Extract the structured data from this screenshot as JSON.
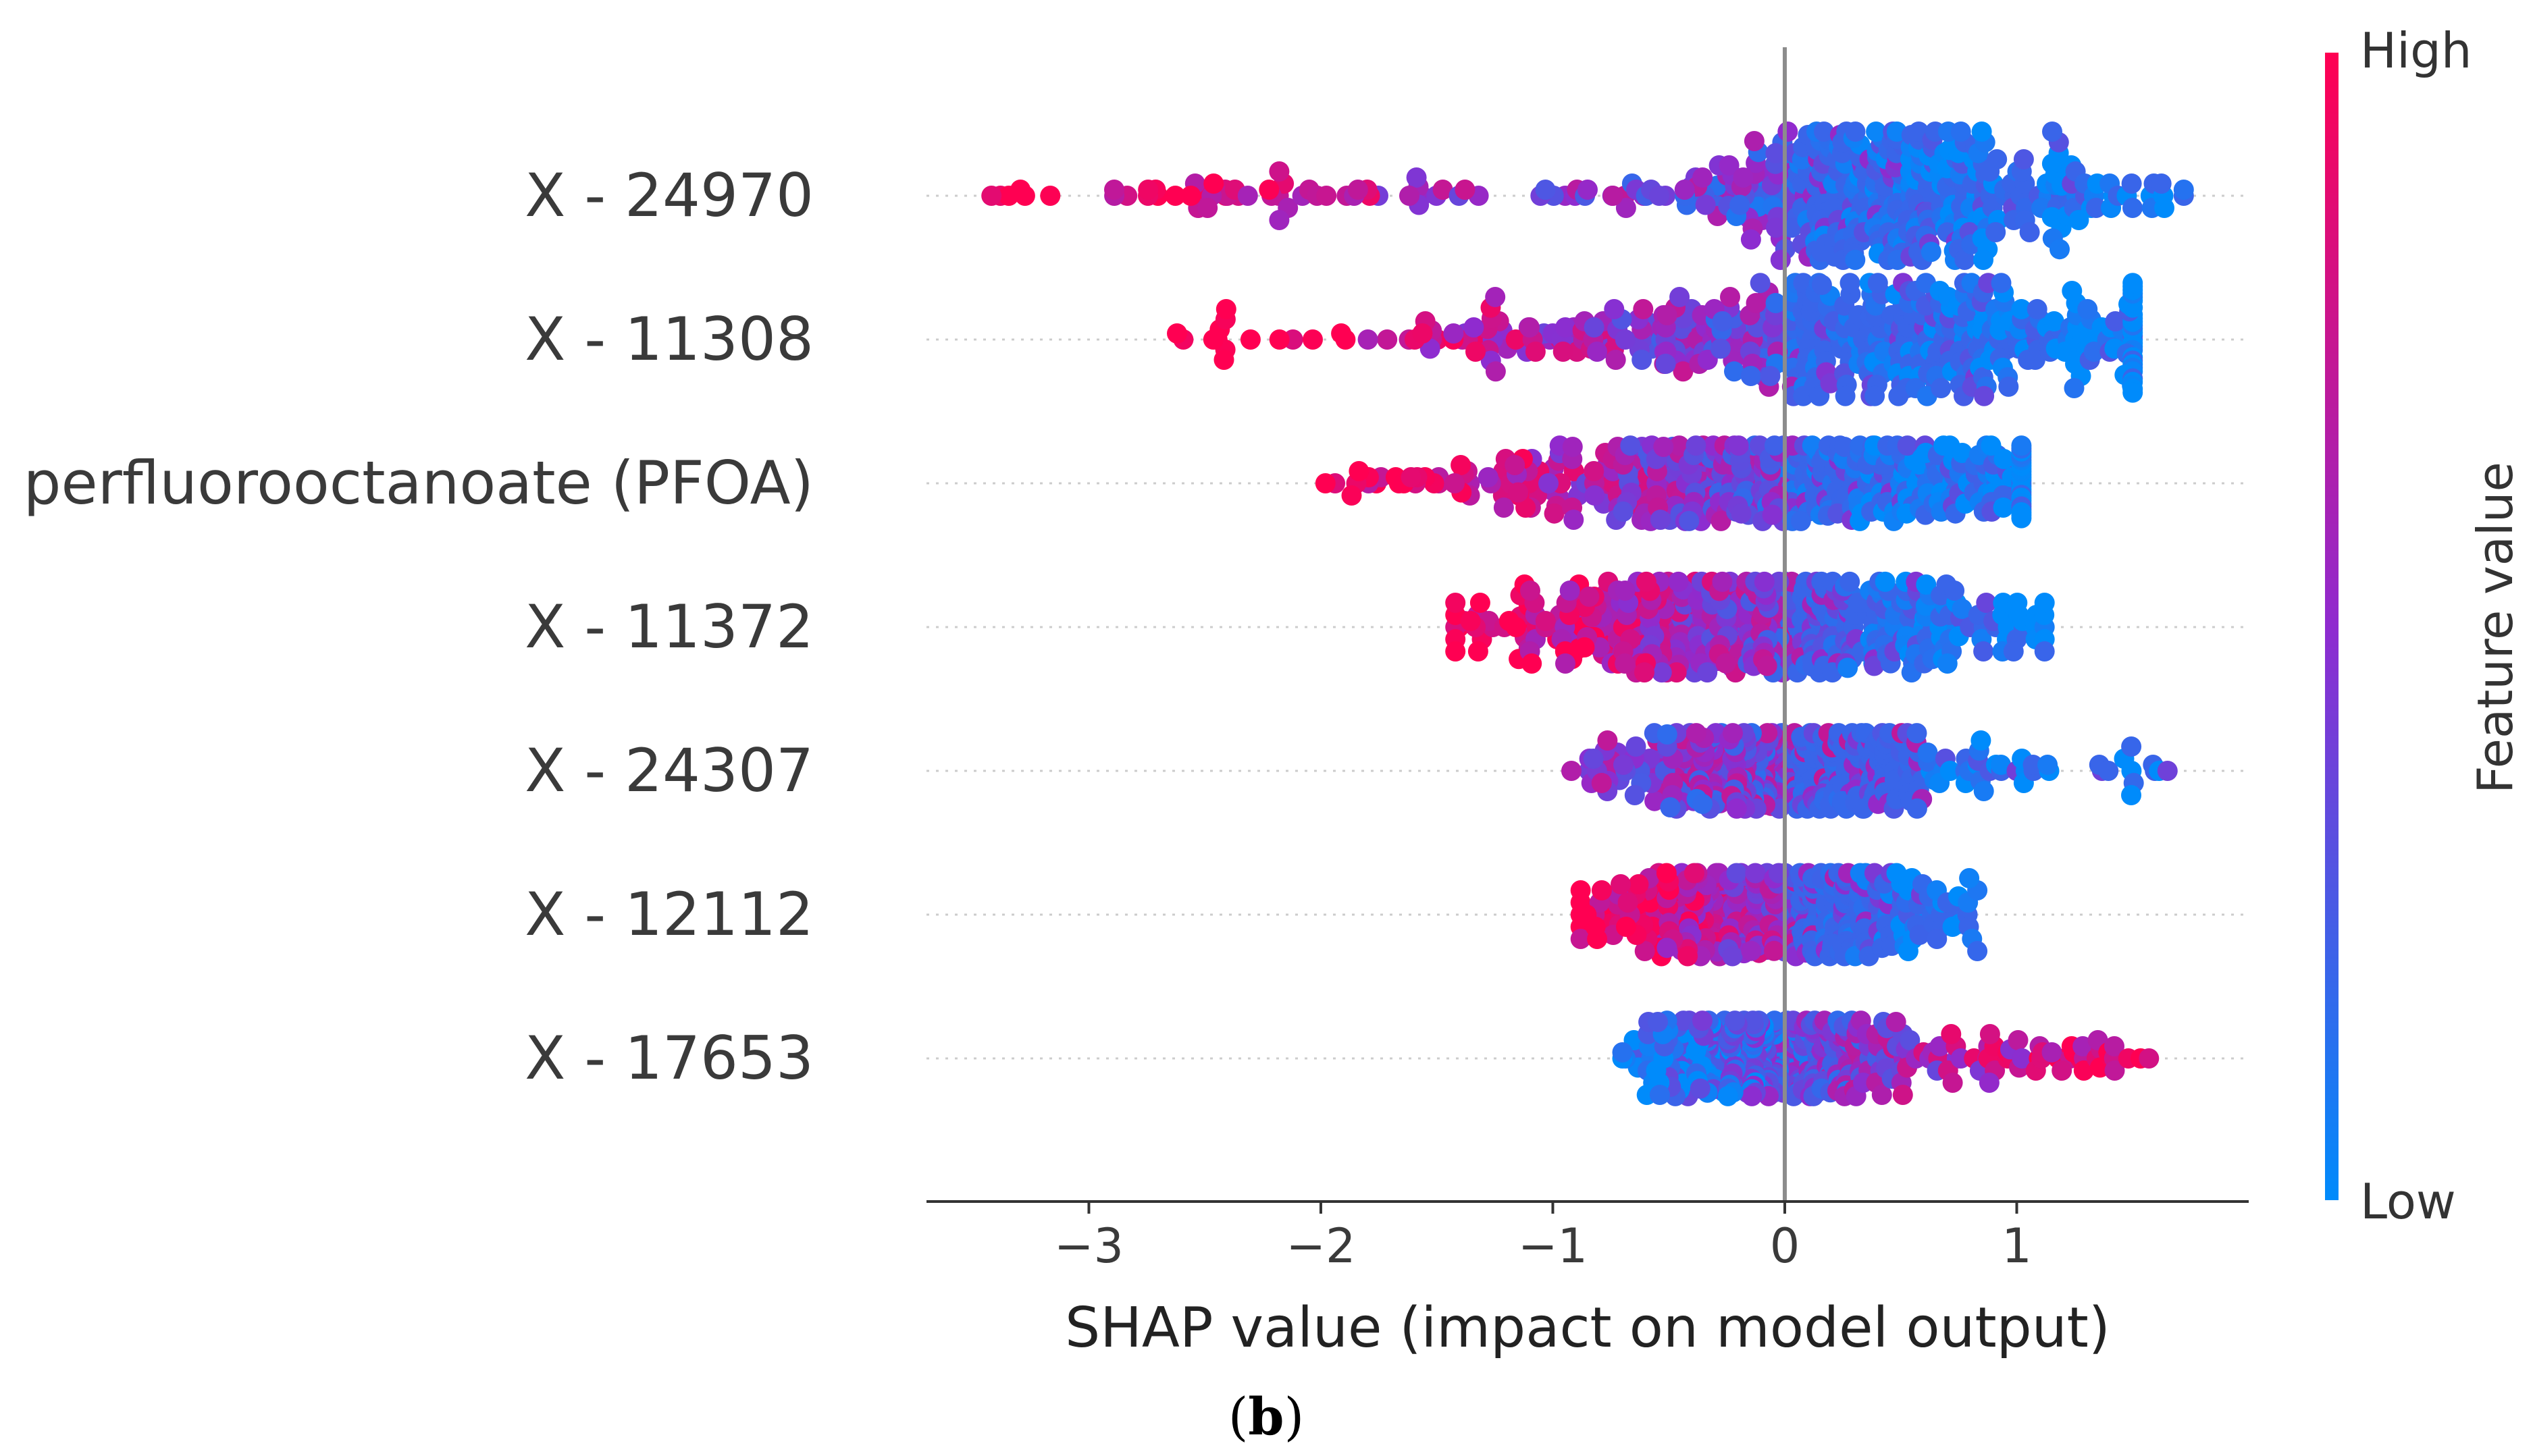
{
  "chart_data": {
    "type": "scatter",
    "subtype": "shap-beeswarm",
    "xlabel": "SHAP value (impact on model output)",
    "xlim": [
      -3.7,
      2.0
    ],
    "xticks": [
      -3,
      -2,
      -1,
      0,
      1
    ],
    "xtick_labels": [
      "−3",
      "−2",
      "−1",
      "0",
      "1"
    ],
    "zero_line": 0,
    "colorbar": {
      "title": "Feature value",
      "high_label": "High",
      "low_label": "Low",
      "high_color": "#ff0052",
      "low_color": "#008bfb"
    },
    "panel_label": {
      "open": "(",
      "letter": "b",
      "close": ")"
    },
    "features": [
      {
        "name": "X - 24970",
        "min": -3.42,
        "max": 1.72,
        "median": 0.45,
        "spread": 0.42,
        "direction": "negative",
        "max_halfwidth": 0.85
      },
      {
        "name": "X - 11308",
        "min": -2.62,
        "max": 1.5,
        "median": 0.35,
        "spread": 0.75,
        "direction": "negative",
        "max_halfwidth": 0.75
      },
      {
        "name": "perfluorooctanoate (PFOA)",
        "min": -1.98,
        "max": 1.02,
        "median": 0.0,
        "spread": 0.65,
        "direction": "negative",
        "max_halfwidth": 0.5
      },
      {
        "name": "X - 11372",
        "min": -1.42,
        "max": 1.12,
        "median": -0.1,
        "spread": 0.55,
        "direction": "negative",
        "max_halfwidth": 0.6
      },
      {
        "name": "X - 24307",
        "min": -0.92,
        "max": 1.65,
        "median": 0.0,
        "spread": 0.35,
        "direction": "neutral",
        "max_halfwidth": 0.5
      },
      {
        "name": "X - 12112",
        "min": -0.88,
        "max": 0.83,
        "median": -0.05,
        "spread": 0.35,
        "direction": "negative",
        "max_halfwidth": 0.55
      },
      {
        "name": "X - 17653",
        "min": -0.7,
        "max": 1.57,
        "median": -0.05,
        "spread": 0.25,
        "direction": "positive",
        "max_halfwidth": 0.5
      }
    ]
  }
}
